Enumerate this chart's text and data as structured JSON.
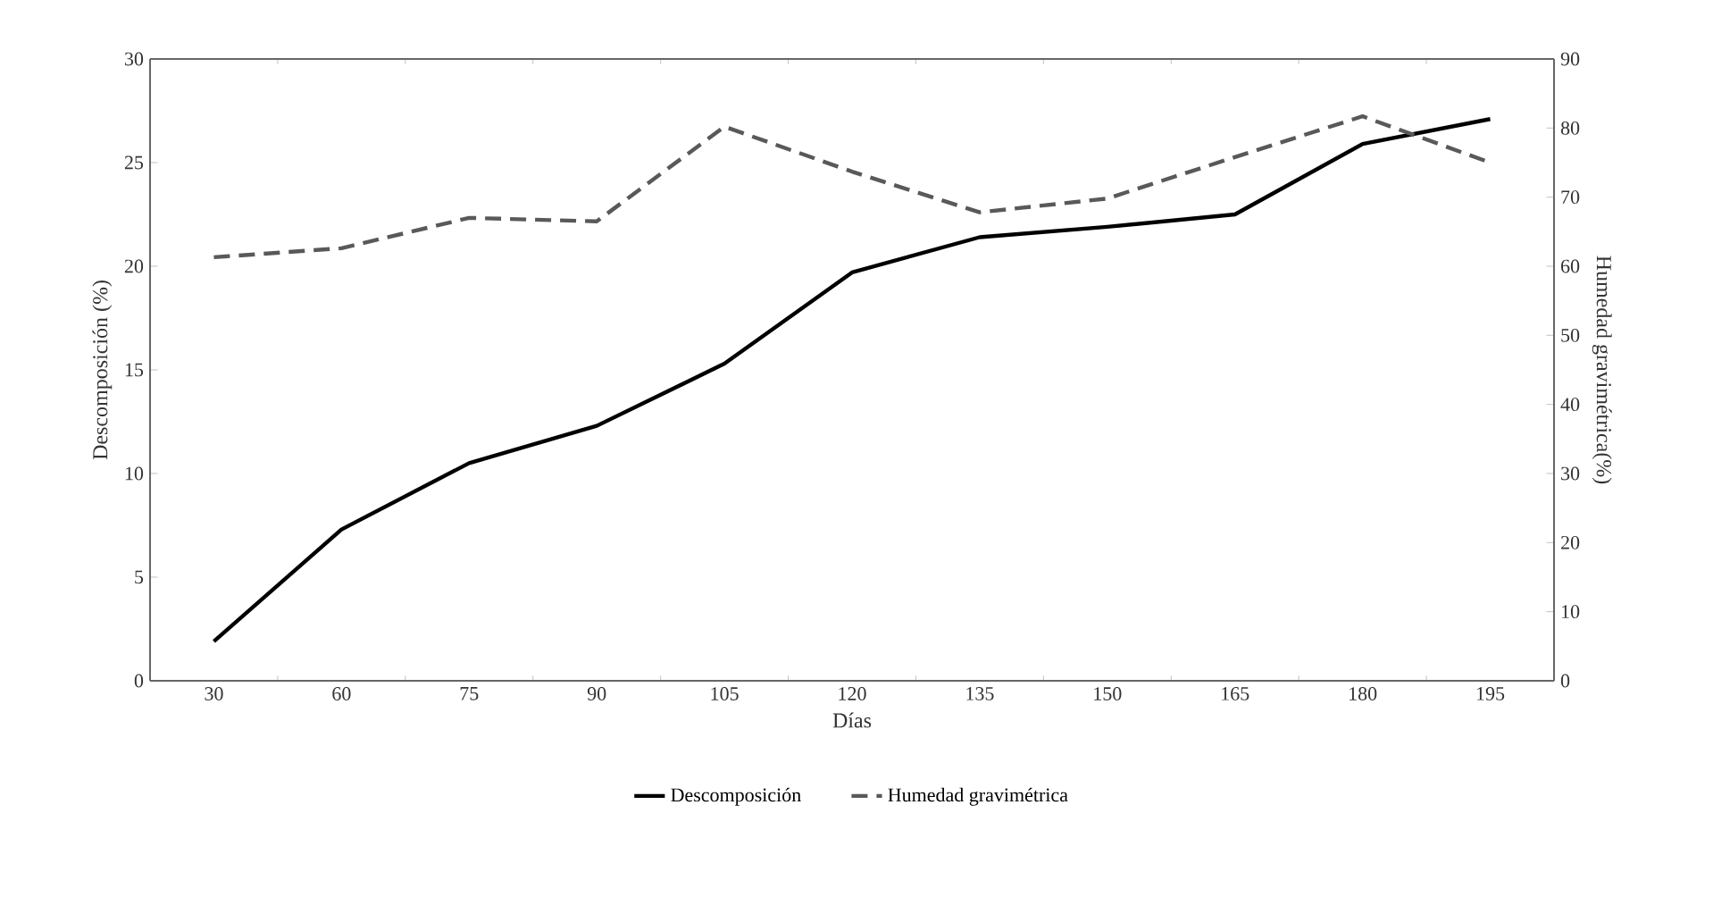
{
  "chart_data": {
    "type": "line",
    "xlabel": "Días",
    "ylabel": "Descomposición (%)",
    "y2label": "Humedad gravimétrica(%)",
    "categories": [
      "30",
      "60",
      "75",
      "90",
      "105",
      "120",
      "135",
      "150",
      "165",
      "180",
      "195"
    ],
    "series": [
      {
        "name": "Descomposición",
        "color": "#000000",
        "line_style": "solid",
        "values": [
          1.9,
          7.3,
          10.5,
          12.3,
          15.3,
          19.7,
          21.4,
          21.9,
          22.5,
          25.9,
          27.1
        ]
      },
      {
        "name": "Humedad gravimétrica",
        "color": "#595959",
        "line_style": "dashed",
        "axis": "y2",
        "values": [
          61.3,
          62.6,
          67,
          66.5,
          80.2,
          73.7,
          67.8,
          69.8,
          75.8,
          81.7,
          75
        ]
      }
    ],
    "ylim": [
      0,
      30
    ],
    "yticks": [
      0,
      5,
      10,
      15,
      20,
      25,
      30
    ],
    "y2lim": [
      0,
      90
    ],
    "y2ticks": [
      0,
      10,
      20,
      30,
      40,
      50,
      60,
      70,
      80,
      90
    ],
    "legend": "bottom",
    "grid": false
  }
}
